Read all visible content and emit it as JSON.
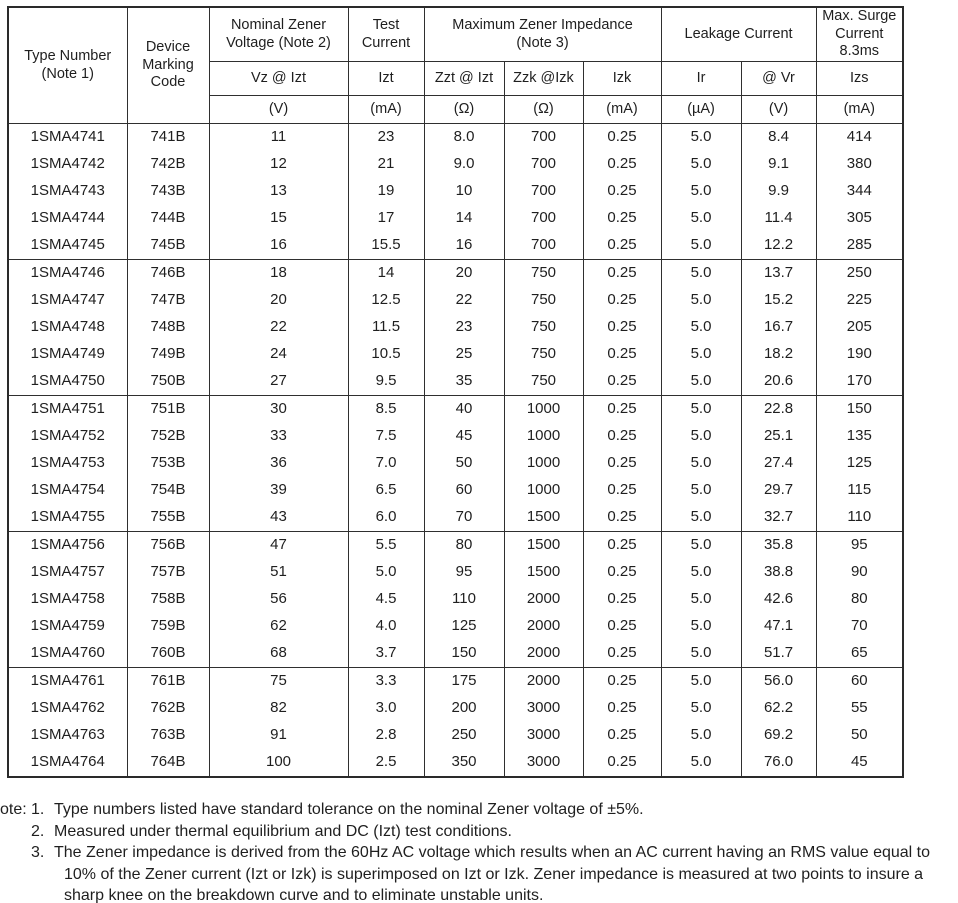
{
  "table": {
    "header": {
      "type_number": [
        "Type Number",
        "(Note 1)"
      ],
      "device_marking": [
        "Device",
        "Marking",
        "Code"
      ],
      "nominal_zener": {
        "title": [
          "Nominal Zener",
          "Voltage (Note 2)"
        ],
        "param": "Vz @ Izt",
        "unit": "(V)"
      },
      "test_current": {
        "title": [
          "Test",
          "Current"
        ],
        "param": "Izt",
        "unit": "(mA)"
      },
      "max_impedance": {
        "title": [
          "Maximum Zener Impedance",
          "(Note 3)"
        ],
        "zzt": {
          "param": "Zzt @ Izt",
          "unit": "(Ω)"
        },
        "zzk": {
          "param": "Zzk @Izk",
          "unit": "(Ω)"
        },
        "izk": {
          "param": "Izk",
          "unit": "(mA)"
        }
      },
      "leakage": {
        "title": "Leakage Current",
        "ir": {
          "param": "Ir",
          "unit": "(µA)"
        },
        "vr": {
          "param": "@ Vr",
          "unit": "(V)"
        }
      },
      "surge": {
        "title": [
          "Max. Surge",
          "Current",
          "8.3ms"
        ],
        "param": "Izs",
        "unit": "(mA)"
      }
    },
    "groups": [
      {
        "rows": [
          [
            "1SMA4741",
            "741B",
            "11",
            "23",
            "8.0",
            "700",
            "0.25",
            "5.0",
            "8.4",
            "414"
          ],
          [
            "1SMA4742",
            "742B",
            "12",
            "21",
            "9.0",
            "700",
            "0.25",
            "5.0",
            "9.1",
            "380"
          ],
          [
            "1SMA4743",
            "743B",
            "13",
            "19",
            "10",
            "700",
            "0.25",
            "5.0",
            "9.9",
            "344"
          ],
          [
            "1SMA4744",
            "744B",
            "15",
            "17",
            "14",
            "700",
            "0.25",
            "5.0",
            "11.4",
            "305"
          ],
          [
            "1SMA4745",
            "745B",
            "16",
            "15.5",
            "16",
            "700",
            "0.25",
            "5.0",
            "12.2",
            "285"
          ]
        ]
      },
      {
        "rows": [
          [
            "1SMA4746",
            "746B",
            "18",
            "14",
            "20",
            "750",
            "0.25",
            "5.0",
            "13.7",
            "250"
          ],
          [
            "1SMA4747",
            "747B",
            "20",
            "12.5",
            "22",
            "750",
            "0.25",
            "5.0",
            "15.2",
            "225"
          ],
          [
            "1SMA4748",
            "748B",
            "22",
            "11.5",
            "23",
            "750",
            "0.25",
            "5.0",
            "16.7",
            "205"
          ],
          [
            "1SMA4749",
            "749B",
            "24",
            "10.5",
            "25",
            "750",
            "0.25",
            "5.0",
            "18.2",
            "190"
          ],
          [
            "1SMA4750",
            "750B",
            "27",
            "9.5",
            "35",
            "750",
            "0.25",
            "5.0",
            "20.6",
            "170"
          ]
        ]
      },
      {
        "rows": [
          [
            "1SMA4751",
            "751B",
            "30",
            "8.5",
            "40",
            "1000",
            "0.25",
            "5.0",
            "22.8",
            "150"
          ],
          [
            "1SMA4752",
            "752B",
            "33",
            "7.5",
            "45",
            "1000",
            "0.25",
            "5.0",
            "25.1",
            "135"
          ],
          [
            "1SMA4753",
            "753B",
            "36",
            "7.0",
            "50",
            "1000",
            "0.25",
            "5.0",
            "27.4",
            "125"
          ],
          [
            "1SMA4754",
            "754B",
            "39",
            "6.5",
            "60",
            "1000",
            "0.25",
            "5.0",
            "29.7",
            "115"
          ],
          [
            "1SMA4755",
            "755B",
            "43",
            "6.0",
            "70",
            "1500",
            "0.25",
            "5.0",
            "32.7",
            "110"
          ]
        ]
      },
      {
        "rows": [
          [
            "1SMA4756",
            "756B",
            "47",
            "5.5",
            "80",
            "1500",
            "0.25",
            "5.0",
            "35.8",
            "95"
          ],
          [
            "1SMA4757",
            "757B",
            "51",
            "5.0",
            "95",
            "1500",
            "0.25",
            "5.0",
            "38.8",
            "90"
          ],
          [
            "1SMA4758",
            "758B",
            "56",
            "4.5",
            "110",
            "2000",
            "0.25",
            "5.0",
            "42.6",
            "80"
          ],
          [
            "1SMA4759",
            "759B",
            "62",
            "4.0",
            "125",
            "2000",
            "0.25",
            "5.0",
            "47.1",
            "70"
          ],
          [
            "1SMA4760",
            "760B",
            "68",
            "3.7",
            "150",
            "2000",
            "0.25",
            "5.0",
            "51.7",
            "65"
          ]
        ]
      },
      {
        "rows": [
          [
            "1SMA4761",
            "761B",
            "75",
            "3.3",
            "175",
            "2000",
            "0.25",
            "5.0",
            "56.0",
            "60"
          ],
          [
            "1SMA4762",
            "762B",
            "82",
            "3.0",
            "200",
            "3000",
            "0.25",
            "5.0",
            "62.2",
            "55"
          ],
          [
            "1SMA4763",
            "763B",
            "91",
            "2.8",
            "250",
            "3000",
            "0.25",
            "5.0",
            "69.2",
            "50"
          ],
          [
            "1SMA4764",
            "764B",
            "100",
            "2.5",
            "350",
            "3000",
            "0.25",
            "5.0",
            "76.0",
            "45"
          ]
        ]
      }
    ]
  },
  "notes": {
    "label": "ote:",
    "items": [
      {
        "num": "1.",
        "text": "Type numbers listed have standard tolerance on the nominal Zener voltage of ±5%."
      },
      {
        "num": "2.",
        "text": "Measured under thermal equilibrium and DC (Izt) test conditions."
      },
      {
        "num": "3.",
        "text": "The Zener impedance is derived from the 60Hz AC voltage which results when an AC current having an RMS value equal to 10% of the Zener current (Izt or Izk) is superimposed on Izt or Izk. Zener impedance is measured at two points to insure a sharp knee on the breakdown curve and to eliminate unstable units."
      }
    ]
  }
}
